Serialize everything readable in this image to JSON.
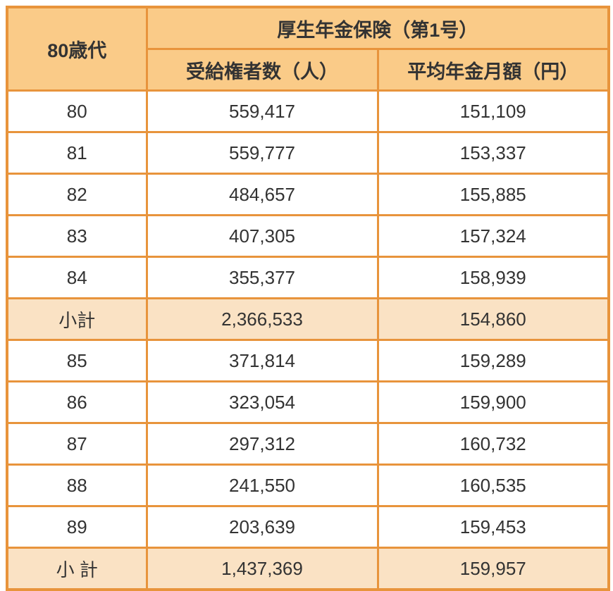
{
  "chart_data": {
    "type": "table",
    "title": "厚生年金保険（第1号）",
    "row_header_title": "80歳代",
    "columns": [
      "受給権者数（人）",
      "平均年金月額（円）"
    ],
    "rows": [
      {
        "label": "80",
        "beneficiaries": "559,417",
        "avg_monthly": "151,109",
        "is_subtotal": false
      },
      {
        "label": "81",
        "beneficiaries": "559,777",
        "avg_monthly": "153,337",
        "is_subtotal": false
      },
      {
        "label": "82",
        "beneficiaries": "484,657",
        "avg_monthly": "155,885",
        "is_subtotal": false
      },
      {
        "label": "83",
        "beneficiaries": "407,305",
        "avg_monthly": "157,324",
        "is_subtotal": false
      },
      {
        "label": "84",
        "beneficiaries": "355,377",
        "avg_monthly": "158,939",
        "is_subtotal": false
      },
      {
        "label": "小計",
        "beneficiaries": "2,366,533",
        "avg_monthly": "154,860",
        "is_subtotal": true
      },
      {
        "label": "85",
        "beneficiaries": "371,814",
        "avg_monthly": "159,289",
        "is_subtotal": false
      },
      {
        "label": "86",
        "beneficiaries": "323,054",
        "avg_monthly": "159,900",
        "is_subtotal": false
      },
      {
        "label": "87",
        "beneficiaries": "297,312",
        "avg_monthly": "160,732",
        "is_subtotal": false
      },
      {
        "label": "88",
        "beneficiaries": "241,550",
        "avg_monthly": "160,535",
        "is_subtotal": false
      },
      {
        "label": "89",
        "beneficiaries": "203,639",
        "avg_monthly": "159,453",
        "is_subtotal": false
      },
      {
        "label": "小 計",
        "beneficiaries": "1,437,369",
        "avg_monthly": "159,957",
        "is_subtotal": true
      }
    ],
    "colors": {
      "border": "#E8943C",
      "header_bg": "#FACB88",
      "subtotal_bg": "#FAE2C4",
      "text": "#333333"
    }
  }
}
